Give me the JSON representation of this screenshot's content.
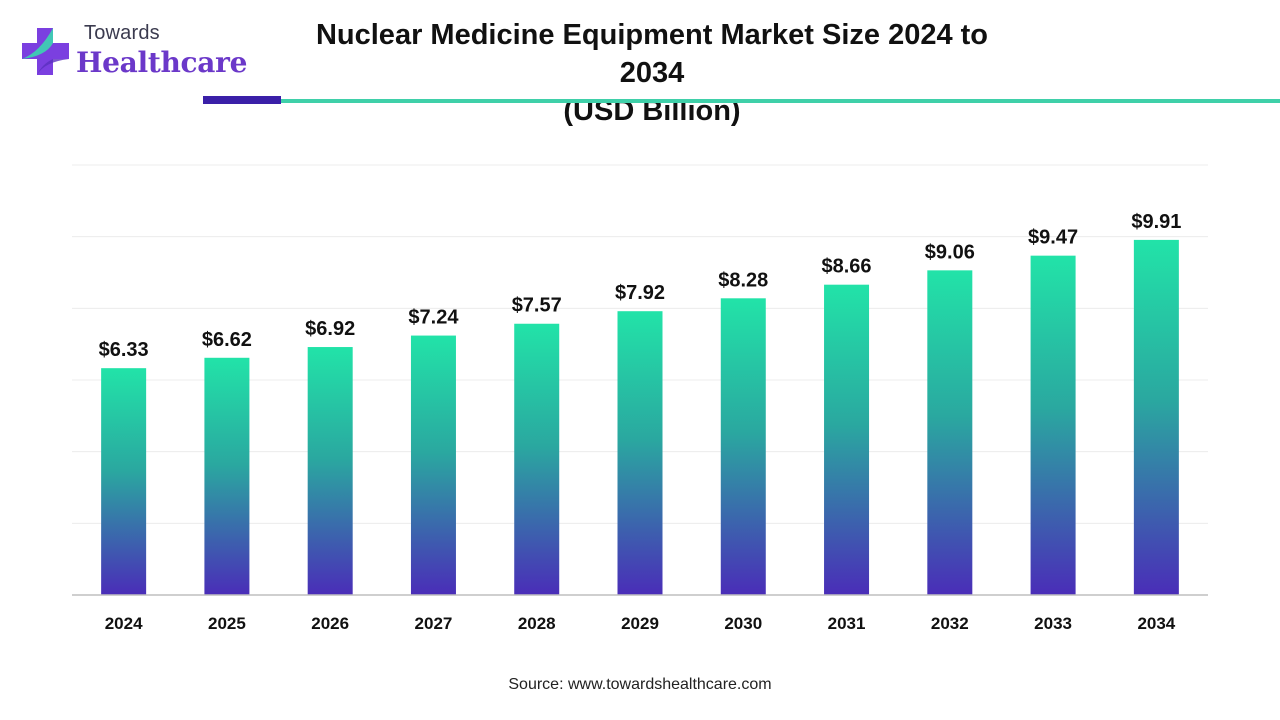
{
  "brand": {
    "line1": "Towards",
    "line2": "Healthcare",
    "icon": "plus-cross-icon"
  },
  "title": {
    "line1": "Nuclear Medicine Equipment Market Size 2024 to 2034",
    "line2": "(USD Billion)"
  },
  "source": "Source: www.towardshealthcare.com",
  "colors": {
    "bar_top": "#22e3a8",
    "bar_bottom": "#4a2db8",
    "brand_purple": "#6b38c9",
    "rule_dark": "#3a1fa8",
    "rule_teal": "#3fd0a9"
  },
  "chart_data": {
    "type": "bar",
    "categories": [
      "2024",
      "2025",
      "2026",
      "2027",
      "2028",
      "2029",
      "2030",
      "2031",
      "2032",
      "2033",
      "2034"
    ],
    "values": [
      6.33,
      6.62,
      6.92,
      7.24,
      7.57,
      7.92,
      8.28,
      8.66,
      9.06,
      9.47,
      9.91
    ],
    "data_labels": [
      "$6.33",
      "$6.62",
      "$6.92",
      "$7.24",
      "$7.57",
      "$7.92",
      "$8.28",
      "$8.66",
      "$9.06",
      "$9.47",
      "$9.91"
    ],
    "title": "Nuclear Medicine Equipment Market Size 2024 to 2034 (USD Billion)",
    "xlabel": "",
    "ylabel": "",
    "ylim": [
      0,
      12
    ],
    "grid": true,
    "legend": "none"
  }
}
